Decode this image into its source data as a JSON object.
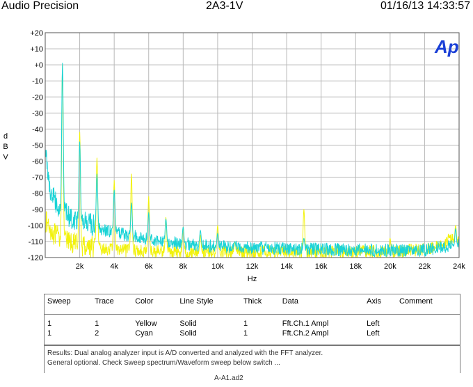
{
  "header": {
    "left": "Audio Precision",
    "center": "2A3-1V",
    "right": "01/16/13 14:33:57"
  },
  "logo_text": "Ap",
  "colors": {
    "yellow": "#f2f20a",
    "cyan": "#19d3d6",
    "grid": "#b8b8b8",
    "logo": "#1a3fd6"
  },
  "chart_data": {
    "type": "line",
    "title": "",
    "xlabel": "Hz",
    "ylabel": "dBV",
    "xlim": [
      0,
      24000
    ],
    "ylim": [
      -120,
      20
    ],
    "x_ticks": [
      2000,
      4000,
      6000,
      8000,
      10000,
      12000,
      14000,
      16000,
      18000,
      20000,
      22000,
      24000
    ],
    "x_tick_labels": [
      "2k",
      "4k",
      "6k",
      "8k",
      "10k",
      "12k",
      "14k",
      "16k",
      "18k",
      "20k",
      "22k",
      "24k"
    ],
    "y_ticks": [
      20,
      10,
      0,
      -10,
      -20,
      -30,
      -40,
      -50,
      -60,
      -70,
      -80,
      -90,
      -100,
      -110,
      -120
    ],
    "y_tick_labels": [
      "+20",
      "+10",
      "+0",
      "-10",
      "-20",
      "-30",
      "-40",
      "-50",
      "-60",
      "-70",
      "-80",
      "-90",
      "-100",
      "-110",
      "-120"
    ],
    "grid": true,
    "series": [
      {
        "name": "Fft.Ch.1 Ampl",
        "color": "yellow",
        "floor": [
          [
            0,
            -100
          ],
          [
            500,
            -108
          ],
          [
            1000,
            -112
          ],
          [
            2000,
            -115
          ],
          [
            4000,
            -117
          ],
          [
            8000,
            -118
          ],
          [
            12000,
            -118
          ],
          [
            16000,
            -118
          ],
          [
            20000,
            -118
          ],
          [
            22500,
            -116
          ],
          [
            23500,
            -110
          ],
          [
            24000,
            -112
          ]
        ],
        "peaks": [
          [
            1000,
            0
          ],
          [
            2000,
            -42
          ],
          [
            3000,
            -58
          ],
          [
            4000,
            -72
          ],
          [
            5000,
            -68
          ],
          [
            6000,
            -82
          ],
          [
            7000,
            -95
          ],
          [
            8000,
            -101
          ],
          [
            9000,
            -106
          ],
          [
            10000,
            -100
          ],
          [
            11000,
            -110
          ],
          [
            15000,
            -90
          ],
          [
            20000,
            -108
          ],
          [
            23800,
            -100
          ]
        ]
      },
      {
        "name": "Fft.Ch.2 Ampl",
        "color": "cyan",
        "floor": [
          [
            0,
            -55
          ],
          [
            300,
            -82
          ],
          [
            800,
            -92
          ],
          [
            1500,
            -98
          ],
          [
            2500,
            -102
          ],
          [
            4000,
            -106
          ],
          [
            6000,
            -110
          ],
          [
            8000,
            -113
          ],
          [
            10000,
            -115
          ],
          [
            14000,
            -116
          ],
          [
            18000,
            -117
          ],
          [
            22000,
            -117
          ],
          [
            23500,
            -114
          ],
          [
            24000,
            -113
          ]
        ],
        "peaks": [
          [
            1000,
            1
          ],
          [
            2000,
            -48
          ],
          [
            3000,
            -68
          ],
          [
            4000,
            -78
          ],
          [
            5000,
            -86
          ],
          [
            6000,
            -92
          ],
          [
            7000,
            -96
          ],
          [
            8000,
            -101
          ],
          [
            9000,
            -103
          ],
          [
            10000,
            -105
          ],
          [
            11000,
            -110
          ],
          [
            15000,
            -108
          ],
          [
            23800,
            -102
          ]
        ]
      }
    ]
  },
  "legend_table": {
    "headers": [
      "Sweep",
      "Trace",
      "Color",
      "Line Style",
      "Thick",
      "Data",
      "Axis",
      "Comment"
    ],
    "rows": [
      [
        "1",
        "1",
        "Yellow",
        "Solid",
        "1",
        "Fft.Ch.1 Ampl",
        "Left",
        ""
      ],
      [
        "1",
        "2",
        "Cyan",
        "Solid",
        "1",
        "Fft.Ch.2 Ampl",
        "Left",
        ""
      ]
    ]
  },
  "notes": {
    "line1": "Results: Dual analog analyzer input is A/D converted and analyzed with the FFT analyzer.",
    "line2": "General optional. Check Sweep spectrum/Waveform sweep below switch ..."
  },
  "footer": "A-A1.ad2"
}
